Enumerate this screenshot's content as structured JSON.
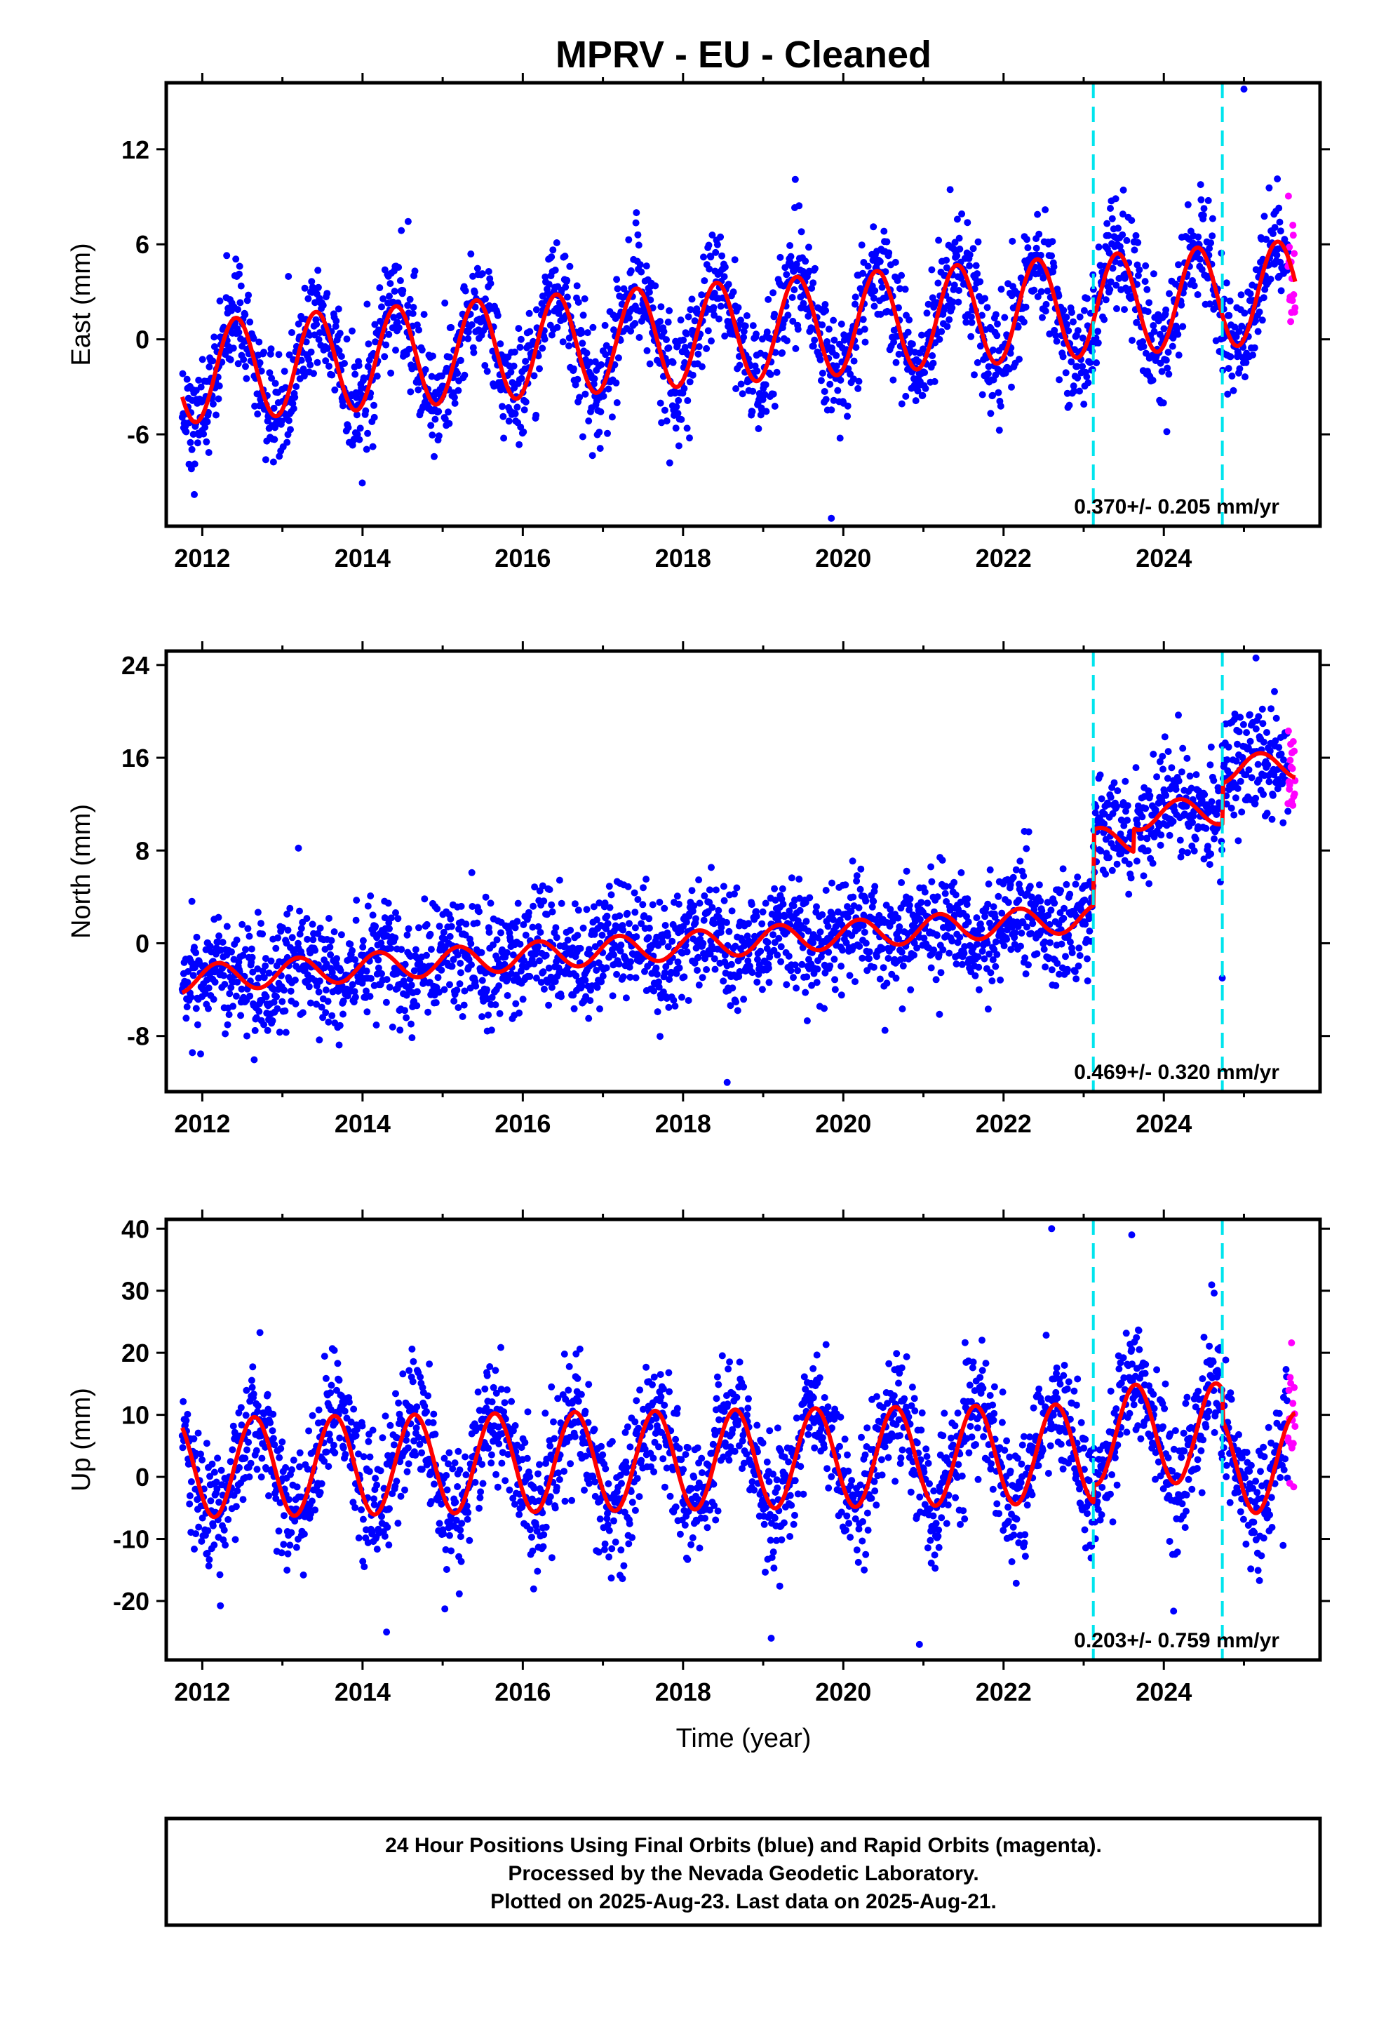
{
  "page_title": "MPRV  - EU - Cleaned",
  "xlabel": "Time (year)",
  "footer": {
    "line1": "24 Hour Positions Using Final Orbits (blue) and Rapid Orbits (magenta).",
    "line2": "Processed by the Nevada Geodetic Laboratory.",
    "line3": "Plotted on 2025-Aug-23. Last data on 2025-Aug-21."
  },
  "colors": {
    "final_orbits": "#0000ff",
    "rapid_orbits": "#ff00ff",
    "model_fit": "#ff0000",
    "breaks": "#00e5ee",
    "frame": "#000000"
  },
  "chart_data": [
    {
      "type": "scatter",
      "panel": "east",
      "ylabel": "East (mm)",
      "xlim": [
        2011.55,
        2025.95
      ],
      "ylim": [
        -11.8,
        16.2
      ],
      "x_ticks": [
        2012,
        2014,
        2016,
        2018,
        2020,
        2022,
        2024
      ],
      "x_tick_labels": [
        "2012",
        "2014",
        "2016",
        "2018",
        "2020",
        "2022",
        "2024"
      ],
      "y_ticks": [
        -6,
        0,
        6,
        12
      ],
      "y_tick_labels": [
        "-6",
        "0",
        "6",
        "12"
      ],
      "rate_label": "0.370+/- 0.205 mm/yr",
      "rate_mm_per_yr": 0.37,
      "rate_sigma": 0.205,
      "data_start": 2011.75,
      "data_end": 2025.55,
      "rapid_start": 2025.55,
      "rapid_end": 2025.64,
      "breaks": [
        2023.12,
        2024.73
      ],
      "series": [
        {
          "label": "Final orbits",
          "kind": "points",
          "color": "#0000ff"
        },
        {
          "label": "Rapid orbits",
          "kind": "points",
          "color": "#ff00ff"
        },
        {
          "label": "Model",
          "kind": "line",
          "color": "#ff0000"
        }
      ],
      "model": {
        "offset_at_2012": -2.0,
        "seasonal_amp": 3.2,
        "peak_phase": 0.42,
        "scatter_sd": 1.8,
        "steps": []
      },
      "extremes": [
        [
          2025.0,
          15.8
        ],
        [
          2019.85,
          -11.3
        ],
        [
          2019.4,
          10.1
        ],
        [
          2011.9,
          -9.8
        ]
      ]
    },
    {
      "type": "scatter",
      "panel": "north",
      "ylabel": "North (mm)",
      "xlim": [
        2011.55,
        2025.95
      ],
      "ylim": [
        -12.8,
        25.2
      ],
      "x_ticks": [
        2012,
        2014,
        2016,
        2018,
        2020,
        2022,
        2024
      ],
      "x_tick_labels": [
        "2012",
        "2014",
        "2016",
        "2018",
        "2020",
        "2022",
        "2024"
      ],
      "y_ticks": [
        -8,
        0,
        8,
        16,
        24
      ],
      "y_tick_labels": [
        "-8",
        "0",
        "8",
        "16",
        "24"
      ],
      "rate_label": "0.469+/- 0.320 mm/yr",
      "rate_mm_per_yr": 0.469,
      "rate_sigma": 0.32,
      "data_start": 2011.75,
      "data_end": 2025.55,
      "rapid_start": 2025.55,
      "rapid_end": 2025.64,
      "breaks": [
        2023.12,
        2024.73
      ],
      "gap": [
        2023.6,
        2023.65
      ],
      "series": [
        {
          "label": "Final orbits",
          "kind": "points",
          "color": "#0000ff"
        },
        {
          "label": "Rapid orbits",
          "kind": "points",
          "color": "#ff00ff"
        },
        {
          "label": "Model",
          "kind": "line",
          "color": "#ff0000"
        }
      ],
      "model": {
        "offset_at_2012": -3.0,
        "seasonal_amp": 1.2,
        "peak_phase": 0.2,
        "scatter_sd": 2.4,
        "steps": [
          [
            2023.12,
            6.5
          ],
          [
            2023.62,
            2.0
          ],
          [
            2024.73,
            3.5
          ]
        ]
      },
      "extremes": [
        [
          2025.15,
          24.6
        ],
        [
          2018.55,
          -12.0
        ],
        [
          2024.73,
          -3.0
        ],
        [
          2013.2,
          8.2
        ]
      ]
    },
    {
      "type": "scatter",
      "panel": "up",
      "ylabel": "Up (mm)",
      "xlim": [
        2011.55,
        2025.95
      ],
      "ylim": [
        -29.5,
        41.5
      ],
      "x_ticks": [
        2012,
        2014,
        2016,
        2018,
        2020,
        2022,
        2024
      ],
      "x_tick_labels": [
        "2012",
        "2014",
        "2016",
        "2018",
        "2020",
        "2022",
        "2024"
      ],
      "y_ticks": [
        -20,
        -10,
        0,
        10,
        20,
        30,
        40
      ],
      "y_tick_labels": [
        "-20",
        "-10",
        "0",
        "10",
        "20",
        "30",
        "40"
      ],
      "rate_label": "0.203+/- 0.759 mm/yr",
      "rate_mm_per_yr": 0.203,
      "rate_sigma": 0.759,
      "data_start": 2011.75,
      "data_end": 2025.55,
      "rapid_start": 2025.55,
      "rapid_end": 2025.64,
      "breaks": [
        2023.12,
        2024.73
      ],
      "series": [
        {
          "label": "Final orbits",
          "kind": "points",
          "color": "#0000ff"
        },
        {
          "label": "Rapid orbits",
          "kind": "points",
          "color": "#ff00ff"
        },
        {
          "label": "Model",
          "kind": "line",
          "color": "#ff0000"
        }
      ],
      "model": {
        "offset_at_2012": 1.5,
        "seasonal_amp": 8.0,
        "peak_phase": 0.65,
        "scatter_sd": 5.0,
        "steps": [
          [
            2023.12,
            3.0
          ],
          [
            2024.73,
            -5.0
          ]
        ]
      },
      "extremes": [
        [
          2022.6,
          40.0
        ],
        [
          2023.6,
          39.0
        ],
        [
          2020.95,
          -27.0
        ],
        [
          2019.1,
          -26.0
        ],
        [
          2014.3,
          -25.0
        ]
      ]
    }
  ]
}
